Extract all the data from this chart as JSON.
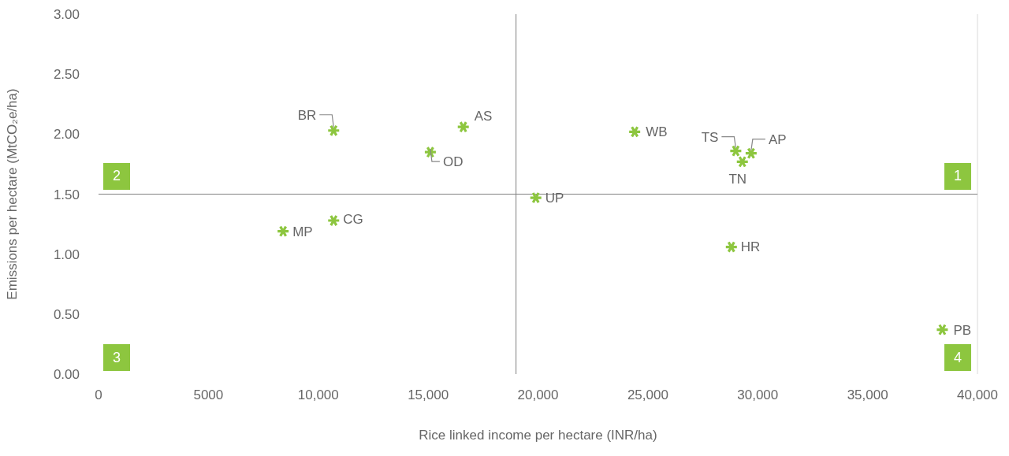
{
  "chart_data": {
    "type": "scatter",
    "xlabel": "Rice linked income per hectare (INR/ha)",
    "ylabel": "Emissions per hectare (MtCO₂e/ha)",
    "xlim": [
      0,
      40000
    ],
    "xticks": [
      0,
      5000,
      {
        "value": 10000,
        "label": "10,000"
      },
      {
        "value": 15000,
        "label": "15,000"
      },
      {
        "value": 20000,
        "label": "20,000"
      },
      {
        "value": 25000,
        "label": "25,000"
      },
      {
        "value": 30000,
        "label": "30,000"
      },
      {
        "value": 35000,
        "label": "35,000"
      },
      {
        "value": 40000,
        "label": "40,000"
      }
    ],
    "ylim": [
      0,
      3
    ],
    "yticks": [
      {
        "value": 0,
        "label": "0.00"
      },
      {
        "value": 0.5,
        "label": "0.50"
      },
      {
        "value": 1,
        "label": "1.00"
      },
      {
        "value": 1.5,
        "label": "1.50"
      },
      {
        "value": 2,
        "label": "2.00"
      },
      {
        "value": 2.5,
        "label": "2.50"
      },
      {
        "value": 3,
        "label": "3.00"
      }
    ],
    "grid": false,
    "legend": false,
    "marker": "cross",
    "ref_lines": [
      {
        "axis": "x",
        "value": 19000,
        "color": "#808080"
      },
      {
        "axis": "y",
        "value": 1.5,
        "color": "#808080"
      }
    ],
    "annotations": [
      "1",
      "2",
      "3",
      "4"
    ],
    "series": [
      {
        "name": "BR",
        "color": "#8dc63f",
        "x": [
          10700
        ],
        "values": [
          2.03
        ]
      },
      {
        "name": "AS",
        "color": "#8dc63f",
        "x": [
          16600
        ],
        "values": [
          2.06
        ]
      },
      {
        "name": "OD",
        "color": "#8dc63f",
        "x": [
          15100
        ],
        "values": [
          1.85
        ]
      },
      {
        "name": "MP",
        "color": "#8dc63f",
        "x": [
          8400
        ],
        "values": [
          1.19
        ]
      },
      {
        "name": "CG",
        "color": "#8dc63f",
        "x": [
          10700
        ],
        "values": [
          1.28
        ]
      },
      {
        "name": "UP",
        "color": "#8dc63f",
        "x": [
          19900
        ],
        "values": [
          1.47
        ]
      },
      {
        "name": "WB",
        "color": "#8dc63f",
        "x": [
          24400
        ],
        "values": [
          2.02
        ]
      },
      {
        "name": "TS",
        "color": "#8dc63f",
        "x": [
          29000
        ],
        "values": [
          1.86
        ]
      },
      {
        "name": "AP",
        "color": "#8dc63f",
        "x": [
          29700
        ],
        "values": [
          1.84
        ]
      },
      {
        "name": "TN",
        "color": "#8dc63f",
        "x": [
          29300
        ],
        "values": [
          1.77
        ]
      },
      {
        "name": "HR",
        "color": "#8dc63f",
        "x": [
          28800
        ],
        "values": [
          1.06
        ]
      },
      {
        "name": "PB",
        "color": "#8dc63f",
        "x": [
          38400
        ],
        "values": [
          0.37
        ]
      }
    ]
  }
}
